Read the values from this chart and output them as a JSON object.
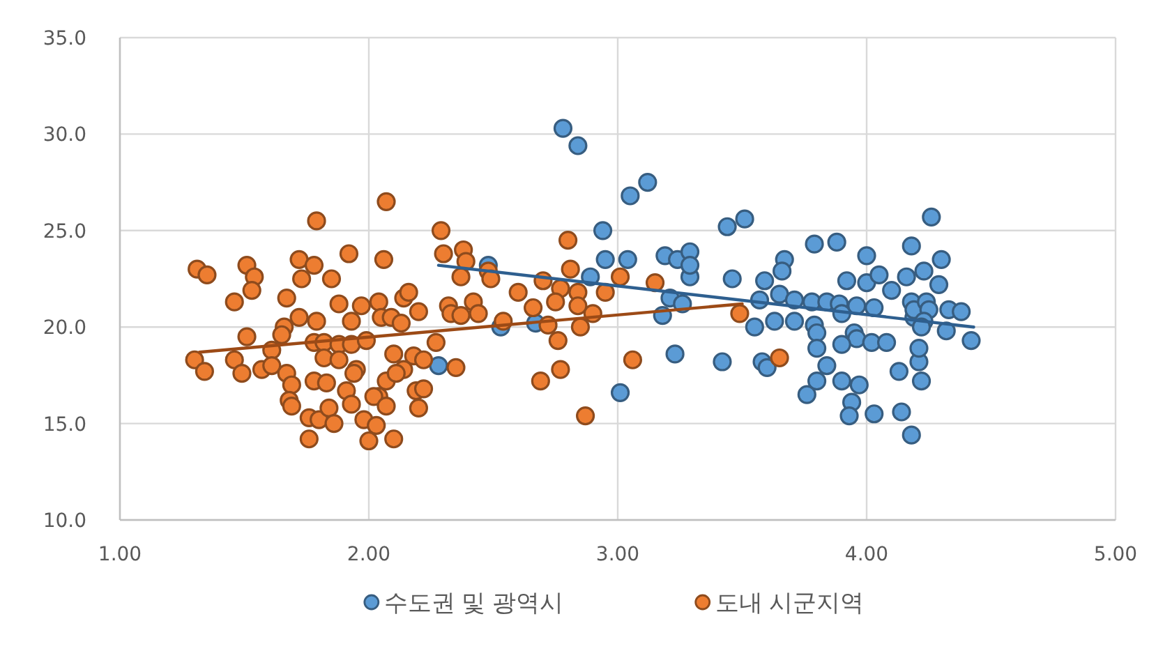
{
  "chart_data": {
    "type": "scatter",
    "xlim": [
      1,
      5
    ],
    "ylim": [
      10,
      35
    ],
    "xticks": [
      {
        "value": 1,
        "label": "1.00"
      },
      {
        "value": 2,
        "label": "2.00"
      },
      {
        "value": 3,
        "label": "3.00"
      },
      {
        "value": 4,
        "label": "4.00"
      },
      {
        "value": 5,
        "label": "5.00"
      }
    ],
    "yticks": [
      {
        "value": 10,
        "label": "10.0"
      },
      {
        "value": 15,
        "label": "15.0"
      },
      {
        "value": 20,
        "label": "20.0"
      },
      {
        "value": 25,
        "label": "25.0"
      },
      {
        "value": 30,
        "label": "30.0"
      },
      {
        "value": 35,
        "label": "35.0"
      }
    ],
    "grid": true,
    "legend": "bottom",
    "marker": "circle",
    "series": [
      {
        "name": "수도권 및 광역시",
        "color": "#5b9bd5",
        "x": [
          2.28,
          2.78,
          2.84,
          3.05,
          3.12,
          2.94,
          2.95,
          3.04,
          3.19,
          3.24,
          3.29,
          3.29,
          2.48,
          2.89,
          3.21,
          3.26,
          3.18,
          2.53,
          2.67,
          3.23,
          3.01,
          3.44,
          3.51,
          3.29,
          3.46,
          3.59,
          3.67,
          3.66,
          3.79,
          3.88,
          4.0,
          3.92,
          4.0,
          4.05,
          4.18,
          4.16,
          4.1,
          3.57,
          3.65,
          3.71,
          3.78,
          3.84,
          3.89,
          3.96,
          4.03,
          3.9,
          4.18,
          4.19,
          3.55,
          3.63,
          3.71,
          3.79,
          3.8,
          3.95,
          3.96,
          3.9,
          4.02,
          4.08,
          3.8,
          3.42,
          3.58,
          3.6,
          3.84,
          3.8,
          3.9,
          3.97,
          3.76,
          3.94,
          3.93,
          4.03,
          4.13,
          4.14,
          4.18,
          4.21,
          4.26,
          4.3,
          4.23,
          4.29,
          4.19,
          4.24,
          4.25,
          4.23,
          4.22,
          4.33,
          4.38,
          4.32,
          4.42,
          4.21,
          4.22
        ],
        "values": [
          18.0,
          30.3,
          29.4,
          26.8,
          27.5,
          25.0,
          23.5,
          23.5,
          23.7,
          23.5,
          23.9,
          22.6,
          23.2,
          22.6,
          21.5,
          21.2,
          20.6,
          20.0,
          20.2,
          18.6,
          16.6,
          25.2,
          25.6,
          23.2,
          22.5,
          22.4,
          23.5,
          22.9,
          24.3,
          24.4,
          23.7,
          22.4,
          22.3,
          22.7,
          24.2,
          22.6,
          21.9,
          21.4,
          21.7,
          21.4,
          21.3,
          21.3,
          21.2,
          21.1,
          21.0,
          20.7,
          21.3,
          20.5,
          20.0,
          20.3,
          20.3,
          20.1,
          19.7,
          19.7,
          19.4,
          19.1,
          19.2,
          19.2,
          18.9,
          18.2,
          18.2,
          17.9,
          18.0,
          17.2,
          17.2,
          17.0,
          16.5,
          16.1,
          15.4,
          15.5,
          17.7,
          15.6,
          14.4,
          18.2,
          25.7,
          23.5,
          22.9,
          22.2,
          20.9,
          21.3,
          20.9,
          20.3,
          20.0,
          20.9,
          20.8,
          19.8,
          19.3,
          18.9,
          17.2
        ]
      },
      {
        "name": "도내 시군지역",
        "color": "#ed7d31",
        "x": [
          1.31,
          1.35,
          1.51,
          1.54,
          1.53,
          1.46,
          1.79,
          2.07,
          2.29,
          2.3,
          2.38,
          1.92,
          2.06,
          1.72,
          1.78,
          1.73,
          1.85,
          1.67,
          1.88,
          1.97,
          2.04,
          2.14,
          2.16,
          2.2,
          2.32,
          2.33,
          2.37,
          1.72,
          1.79,
          1.93,
          2.05,
          2.09,
          2.13,
          1.66,
          1.65,
          1.51,
          1.61,
          1.78,
          1.82,
          1.88,
          1.93,
          1.99,
          2.27,
          1.46,
          1.49,
          1.57,
          1.61,
          1.67,
          1.69,
          1.82,
          1.88,
          1.95,
          1.94,
          2.1,
          2.18,
          2.22,
          2.35,
          2.14,
          1.78,
          1.83,
          1.91,
          2.07,
          2.04,
          2.11,
          2.19,
          2.22,
          2.2,
          1.68,
          1.69,
          1.93,
          2.02,
          2.07,
          1.76,
          1.8,
          1.84,
          1.86,
          1.98,
          2.03,
          1.76,
          2.0,
          2.1,
          1.3,
          1.34,
          2.39,
          2.37,
          2.48,
          2.49,
          2.6,
          2.7,
          2.77,
          2.8,
          2.81,
          2.75,
          2.84,
          2.95,
          3.01,
          3.15,
          2.42,
          2.44,
          2.54,
          2.66,
          2.72,
          2.84,
          2.85,
          2.9,
          2.76,
          2.77,
          2.69,
          3.06,
          2.87,
          3.49,
          3.65
        ],
        "values": [
          23.0,
          22.7,
          23.2,
          22.6,
          21.9,
          21.3,
          25.5,
          26.5,
          25.0,
          23.8,
          24.0,
          23.8,
          23.5,
          23.5,
          23.2,
          22.5,
          22.5,
          21.5,
          21.2,
          21.1,
          21.3,
          21.5,
          21.8,
          20.8,
          21.1,
          20.7,
          20.6,
          20.5,
          20.3,
          20.3,
          20.5,
          20.5,
          20.2,
          20.0,
          19.6,
          19.5,
          18.8,
          19.2,
          19.2,
          19.1,
          19.1,
          19.3,
          19.2,
          18.3,
          17.6,
          17.8,
          18.0,
          17.6,
          17.0,
          18.4,
          18.3,
          17.8,
          17.6,
          18.6,
          18.5,
          18.3,
          17.9,
          17.8,
          17.2,
          17.1,
          16.7,
          17.2,
          16.4,
          17.6,
          16.7,
          16.8,
          15.8,
          16.2,
          15.9,
          16.0,
          16.4,
          15.9,
          15.3,
          15.2,
          15.8,
          15.0,
          15.2,
          14.9,
          14.2,
          14.1,
          14.2,
          18.3,
          17.7,
          23.4,
          22.6,
          22.9,
          22.5,
          21.8,
          22.4,
          22.0,
          24.5,
          23.0,
          21.3,
          21.8,
          21.8,
          22.6,
          22.3,
          21.3,
          20.7,
          20.3,
          21.0,
          20.1,
          21.1,
          20.0,
          20.7,
          19.3,
          17.8,
          17.2,
          18.3,
          15.4,
          20.7,
          18.4
        ]
      },
      {
        "type": "line",
        "marker": "none",
        "color": "#2e5f8f",
        "x": [
          2.28,
          4.43
        ],
        "values": [
          23.2,
          20.0
        ]
      },
      {
        "type": "line",
        "marker": "none",
        "color": "#9c4a16",
        "x": [
          1.32,
          3.5
        ],
        "values": [
          18.7,
          21.2
        ]
      }
    ]
  }
}
